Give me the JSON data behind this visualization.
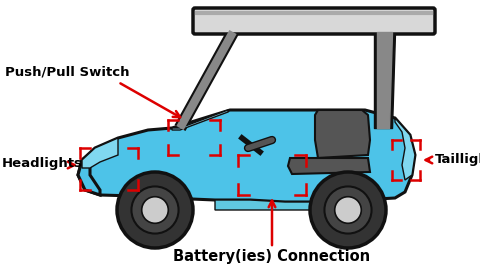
{
  "bg_color": "#ffffff",
  "cart_body_color": "#4dc3e8",
  "cart_outline_color": "#111111",
  "roof_color": "#d8d8d8",
  "roof_stripe_color": "#888888",
  "wheel_color": "#333333",
  "wheel_inner_color": "#cccccc",
  "seat_color": "#555555",
  "support_color": "#888888",
  "red_box_color": "#dd0000",
  "label_color": "#000000",
  "labels": {
    "push_pull": "Push/Pull Switch",
    "headlights": "Headlights",
    "taillights": "Taillights",
    "battery": "Battery(ies) Connection"
  },
  "label_fontsize": 9.5,
  "label_fontweight": "bold"
}
